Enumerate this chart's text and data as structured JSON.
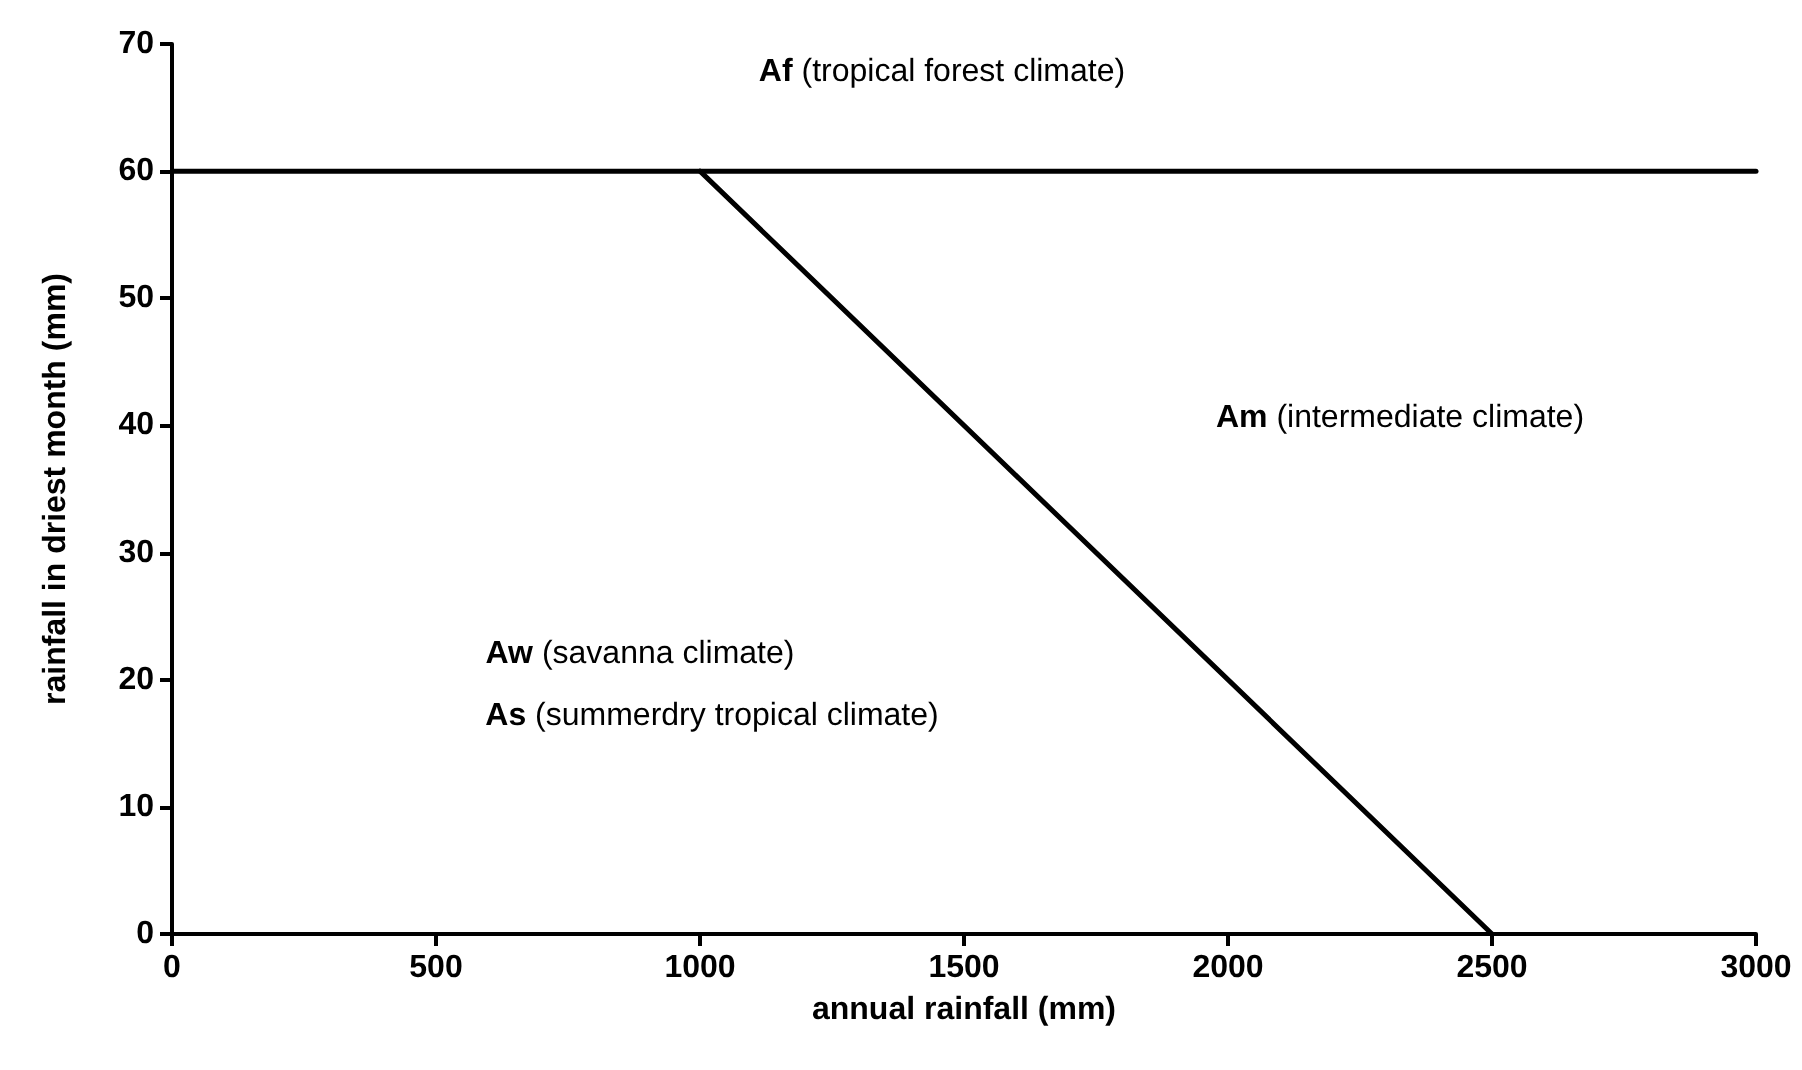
{
  "chart_data": {
    "type": "line",
    "xlabel": "annual rainfall (mm)",
    "ylabel": "rainfall in driest month (mm)",
    "series": [
      {
        "x": [
          0,
          3000
        ],
        "values": [
          60,
          60
        ],
        "color": "#000000"
      },
      {
        "x": [
          1000,
          2500
        ],
        "values": [
          60,
          0
        ],
        "color": "#000000"
      }
    ],
    "xlim": [
      0,
      3000
    ],
    "xticks": [
      0,
      500,
      1000,
      1500,
      2000,
      2500,
      3000
    ],
    "ylim": [
      0,
      70
    ],
    "yticks": [
      0,
      10,
      20,
      30,
      40,
      50,
      60,
      70
    ],
    "grid": false,
    "marker": "none",
    "line_style": "solid",
    "annotations": [
      "Af (tropical forest climate)",
      "Am (intermediate climate)",
      "Aw (savanna climate)",
      "As (summerdry tropical climate)"
    ]
  }
}
